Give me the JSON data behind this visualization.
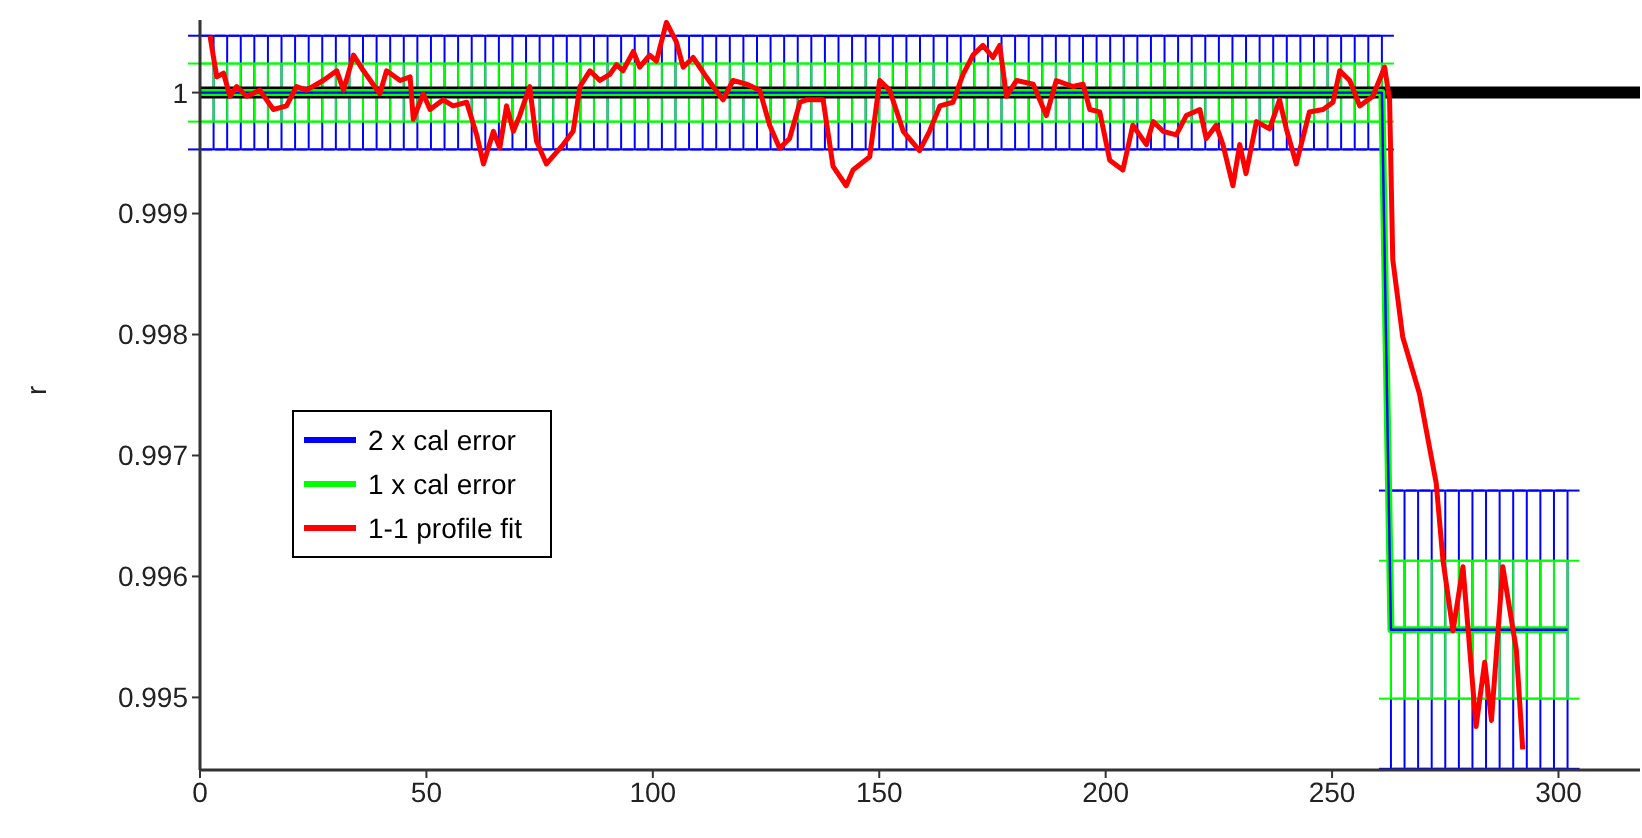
{
  "chart_data": {
    "type": "line",
    "ylabel": "r",
    "xlim": [
      0,
      318
    ],
    "xticks": [
      0,
      50,
      100,
      150,
      200,
      250,
      300
    ],
    "ylim": [
      0.9944,
      1.0006
    ],
    "yticks": [
      0.995,
      0.996,
      0.997,
      0.998,
      0.999,
      1
    ],
    "legend": "left",
    "grid": false,
    "x": [
      0,
      3,
      6,
      9,
      12,
      15,
      18,
      21,
      24,
      27,
      30,
      33,
      36,
      39,
      42,
      45,
      48,
      51,
      54,
      57,
      60,
      63,
      66,
      69,
      72,
      75,
      78,
      81,
      84,
      87,
      90,
      93,
      96,
      99,
      102,
      105,
      108,
      111,
      114,
      117,
      120,
      123,
      126,
      129,
      132,
      135,
      138,
      141,
      144,
      147,
      150,
      153,
      156,
      159,
      162,
      165,
      168,
      171,
      174,
      177,
      180,
      183,
      186,
      189,
      192,
      195,
      198,
      201,
      204,
      207,
      210,
      213,
      216,
      219,
      222,
      225,
      228,
      231,
      234,
      237,
      240,
      243,
      246,
      249,
      252,
      255,
      258,
      261,
      263,
      266,
      269,
      272,
      275,
      278,
      281,
      284,
      287,
      290,
      293,
      296,
      299,
      302
    ],
    "series": [
      {
        "name": "2 x cal error",
        "color": "#0000ff",
        "values": [
          1,
          1,
          1,
          1,
          1,
          1,
          1,
          1,
          1,
          1,
          1,
          1,
          1,
          1,
          1,
          1,
          1,
          1,
          1,
          1,
          1,
          1,
          1,
          1,
          1,
          1,
          1,
          1,
          1,
          1,
          1,
          1,
          1,
          1,
          1,
          1,
          1,
          1,
          1,
          1,
          1,
          1,
          1,
          1,
          1,
          1,
          1,
          1,
          1,
          1,
          1,
          1,
          1,
          1,
          1,
          1,
          1,
          1,
          1,
          1,
          1,
          1,
          1,
          1,
          1,
          1,
          1,
          1,
          1,
          1,
          1,
          1,
          1,
          1,
          1,
          1,
          1,
          1,
          1,
          1,
          1,
          1,
          1,
          1,
          1,
          1,
          1,
          1,
          0.99556,
          0.99556,
          0.99556,
          0.99556,
          0.99556,
          0.99556,
          0.99556,
          0.99556,
          0.99556,
          0.99556,
          0.99556,
          0.99556,
          0.99556,
          0.99556
        ],
        "errors": [
          0.00047,
          0.00047,
          0.00047,
          0.00047,
          0.00047,
          0.00047,
          0.00047,
          0.00047,
          0.00047,
          0.00047,
          0.00047,
          0.00047,
          0.00047,
          0.00047,
          0.00047,
          0.00047,
          0.00047,
          0.00047,
          0.00047,
          0.00047,
          0.00047,
          0.00047,
          0.00047,
          0.00047,
          0.00047,
          0.00047,
          0.00047,
          0.00047,
          0.00047,
          0.00047,
          0.00047,
          0.00047,
          0.00047,
          0.00047,
          0.00047,
          0.00047,
          0.00047,
          0.00047,
          0.00047,
          0.00047,
          0.00047,
          0.00047,
          0.00047,
          0.00047,
          0.00047,
          0.00047,
          0.00047,
          0.00047,
          0.00047,
          0.00047,
          0.00047,
          0.00047,
          0.00047,
          0.00047,
          0.00047,
          0.00047,
          0.00047,
          0.00047,
          0.00047,
          0.00047,
          0.00047,
          0.00047,
          0.00047,
          0.00047,
          0.00047,
          0.00047,
          0.00047,
          0.00047,
          0.00047,
          0.00047,
          0.00047,
          0.00047,
          0.00047,
          0.00047,
          0.00047,
          0.00047,
          0.00047,
          0.00047,
          0.00047,
          0.00047,
          0.00047,
          0.00047,
          0.00047,
          0.00047,
          0.00047,
          0.00047,
          0.00047,
          0.00047,
          0.00115,
          0.00115,
          0.00115,
          0.00115,
          0.00115,
          0.00115,
          0.00115,
          0.00115,
          0.00115,
          0.00115,
          0.00115,
          0.00115,
          0.00115,
          0.00115
        ]
      },
      {
        "name": "1 x cal error",
        "color": "#00ff00",
        "values": [
          1,
          1,
          1,
          1,
          1,
          1,
          1,
          1,
          1,
          1,
          1,
          1,
          1,
          1,
          1,
          1,
          1,
          1,
          1,
          1,
          1,
          1,
          1,
          1,
          1,
          1,
          1,
          1,
          1,
          1,
          1,
          1,
          1,
          1,
          1,
          1,
          1,
          1,
          1,
          1,
          1,
          1,
          1,
          1,
          1,
          1,
          1,
          1,
          1,
          1,
          1,
          1,
          1,
          1,
          1,
          1,
          1,
          1,
          1,
          1,
          1,
          1,
          1,
          1,
          1,
          1,
          1,
          1,
          1,
          1,
          1,
          1,
          1,
          1,
          1,
          1,
          1,
          1,
          1,
          1,
          1,
          1,
          1,
          1,
          1,
          1,
          1,
          1,
          0.99556,
          0.99556,
          0.99556,
          0.99556,
          0.99556,
          0.99556,
          0.99556,
          0.99556,
          0.99556,
          0.99556,
          0.99556,
          0.99556,
          0.99556,
          0.99556
        ],
        "errors": [
          0.00024,
          0.00024,
          0.00024,
          0.00024,
          0.00024,
          0.00024,
          0.00024,
          0.00024,
          0.00024,
          0.00024,
          0.00024,
          0.00024,
          0.00024,
          0.00024,
          0.00024,
          0.00024,
          0.00024,
          0.00024,
          0.00024,
          0.00024,
          0.00024,
          0.00024,
          0.00024,
          0.00024,
          0.00024,
          0.00024,
          0.00024,
          0.00024,
          0.00024,
          0.00024,
          0.00024,
          0.00024,
          0.00024,
          0.00024,
          0.00024,
          0.00024,
          0.00024,
          0.00024,
          0.00024,
          0.00024,
          0.00024,
          0.00024,
          0.00024,
          0.00024,
          0.00024,
          0.00024,
          0.00024,
          0.00024,
          0.00024,
          0.00024,
          0.00024,
          0.00024,
          0.00024,
          0.00024,
          0.00024,
          0.00024,
          0.00024,
          0.00024,
          0.00024,
          0.00024,
          0.00024,
          0.00024,
          0.00024,
          0.00024,
          0.00024,
          0.00024,
          0.00024,
          0.00024,
          0.00024,
          0.00024,
          0.00024,
          0.00024,
          0.00024,
          0.00024,
          0.00024,
          0.00024,
          0.00024,
          0.00024,
          0.00024,
          0.00024,
          0.00024,
          0.00024,
          0.00024,
          0.00024,
          0.00024,
          0.00024,
          0.00024,
          0.00024,
          0.00057,
          0.00057,
          0.00057,
          0.00057,
          0.00057,
          0.00057,
          0.00057,
          0.00057,
          0.00057,
          0.00057,
          0.00057,
          0.00057,
          0.00057,
          0.00057
        ]
      },
      {
        "name": "1-1 profile fit",
        "color": "#ff0000",
        "x": [
          2.2,
          3.7,
          5.2,
          6.6,
          8.1,
          10.3,
          13.2,
          16.2,
          19.1,
          21.3,
          23.5,
          27.2,
          30.2,
          31.7,
          33.9,
          36.1,
          39.7,
          41.2,
          44.2,
          46.4,
          47.1,
          49.3,
          50.8,
          53.7,
          55.9,
          58.9,
          61.1,
          62.6,
          64.8,
          66.2,
          67.7,
          69.2,
          70.6,
          72.8,
          74.3,
          76.5,
          80.2,
          82.4,
          83.9,
          86.1,
          88.3,
          90.5,
          92,
          93.4,
          95.7,
          97.1,
          99.3,
          100.8,
          103,
          105.2,
          106.7,
          108.9,
          111.8,
          113.3,
          115.5,
          117.7,
          120.7,
          123.6,
          125.8,
          128,
          130.2,
          132.5,
          133.9,
          137.6,
          139.8,
          142.7,
          144.2,
          147.9,
          150.1,
          152.3,
          155.3,
          158.9,
          161.1,
          163.4,
          166.3,
          168.5,
          170.7,
          172.9,
          175.1,
          176.6,
          178.1,
          180.3,
          184,
          186.9,
          189.1,
          192.8,
          195,
          196.5,
          198.7,
          200.9,
          203.8,
          206,
          209,
          210.5,
          212.7,
          215.6,
          217.8,
          220.8,
          222.2,
          224.4,
          225.9,
          228.1,
          229.6,
          231,
          233.3,
          236.2,
          238.4,
          239.9,
          242.1,
          245,
          248,
          250.2,
          251.7,
          253.9,
          256.1,
          259,
          261.6,
          262.7,
          263.4,
          265.6,
          269.3,
          273,
          274.5,
          276.7,
          278.9,
          281.8,
          283.7,
          285.2,
          287.7,
          290.7,
          292.1
        ],
        "values": [
          1.00047,
          1.00013,
          1.00016,
          0.99997,
          1.00005,
          0.99997,
          1.00002,
          0.99986,
          0.99989,
          1.00005,
          1.00002,
          1.0001,
          1.00018,
          1.00002,
          1.00031,
          1.00018,
          0.99999,
          1.00018,
          1.0001,
          1.00013,
          0.99978,
          0.99999,
          0.99986,
          0.99994,
          0.99989,
          0.99992,
          0.99965,
          0.99941,
          0.99968,
          0.99954,
          0.99989,
          0.99968,
          0.99981,
          1.00005,
          0.9996,
          0.99941,
          0.99957,
          0.99968,
          1.00005,
          1.00018,
          1.0001,
          1.00015,
          1.00023,
          1.00018,
          1.00034,
          1.00021,
          1.00031,
          1.00026,
          1.00058,
          1.00042,
          1.00021,
          1.00029,
          1.00013,
          1.00005,
          0.99994,
          1.0001,
          1.00007,
          1.00002,
          0.99973,
          0.99954,
          0.99962,
          0.99992,
          0.99994,
          0.99994,
          0.99939,
          0.99923,
          0.99936,
          0.99947,
          1.0001,
          1.00002,
          0.99968,
          0.99952,
          0.99968,
          0.99989,
          0.99992,
          1.00015,
          1.00031,
          1.00039,
          1.00029,
          1.00039,
          0.99997,
          1.0001,
          1.00007,
          0.99981,
          1.0001,
          1.00005,
          1.00007,
          0.99986,
          0.99984,
          0.99944,
          0.99936,
          0.99973,
          0.99957,
          0.99976,
          0.99968,
          0.99965,
          0.99981,
          0.99986,
          0.99962,
          0.99973,
          0.99957,
          0.99923,
          0.99957,
          0.99933,
          0.99976,
          0.9997,
          0.99994,
          0.9997,
          0.99941,
          0.99984,
          0.99986,
          0.99992,
          1.00018,
          1.0001,
          0.99989,
          0.99997,
          1.00021,
          0.99994,
          0.99862,
          0.99798,
          0.99751,
          0.99677,
          0.99613,
          0.99555,
          0.99608,
          0.99476,
          0.99529,
          0.99481,
          0.99608,
          0.99539,
          0.99457
        ]
      }
    ],
    "ref_lines": [
      {
        "axis": "y",
        "value": 1,
        "color": "#000000"
      }
    ]
  }
}
